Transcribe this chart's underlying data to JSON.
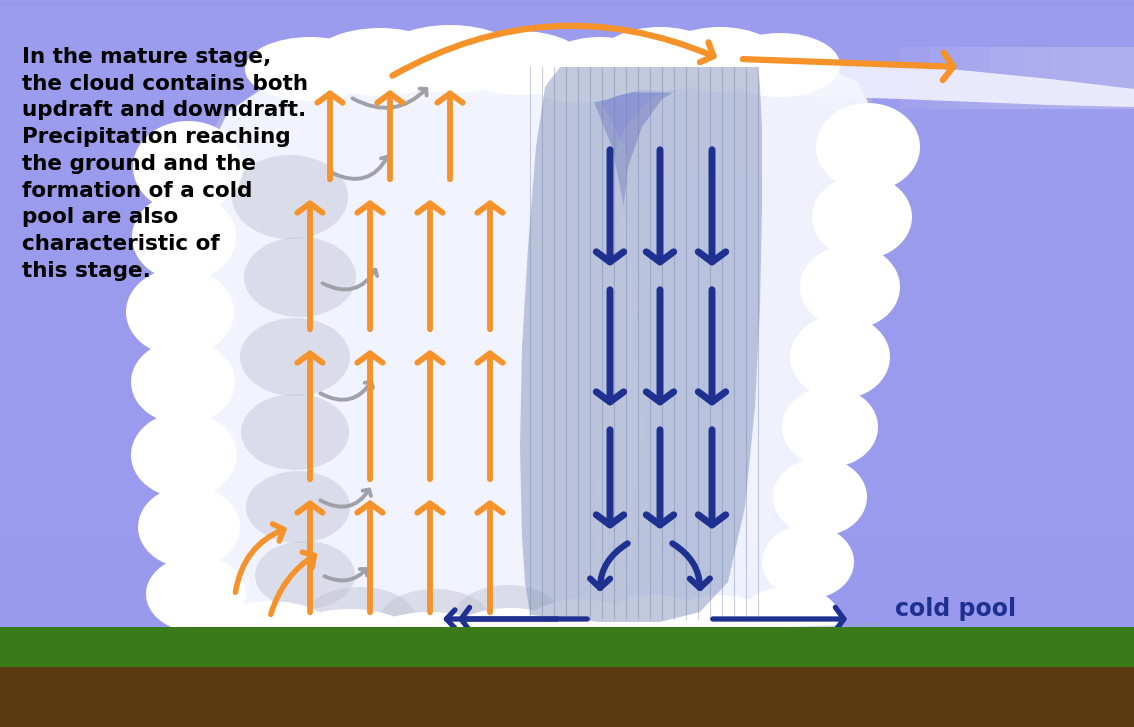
{
  "bg_sky_top": "#9999ee",
  "bg_sky_bottom": "#aaaadd",
  "ground_green": "#3a7a18",
  "ground_brown": "#5a3a10",
  "cloud_white": "#f4f6ff",
  "cloud_white2": "#e8ecf8",
  "cloud_gray": "#c0c4d0",
  "cloud_shadow": "#b0b4c0",
  "anvil_white": "#eeeeff",
  "rain_color": "#8090b8",
  "rain_line_color": "#6878a0",
  "cold_pool_fill": "#99aace",
  "orange": "#f5922a",
  "blue": "#1e3090",
  "gray_arrow": "#a0a0a8",
  "text_black": "#000000",
  "cold_pool_text": "#1e3090",
  "annotation": "In the mature stage,\nthe cloud contains both\nupdraft and downdraft.\nPrecipitation reaching\nthe ground and the\nformation of a cold\npool are also\ncharacteristic of\nthis stage.",
  "cold_pool_label": "cold pool",
  "fig_w": 11.34,
  "fig_h": 7.27
}
